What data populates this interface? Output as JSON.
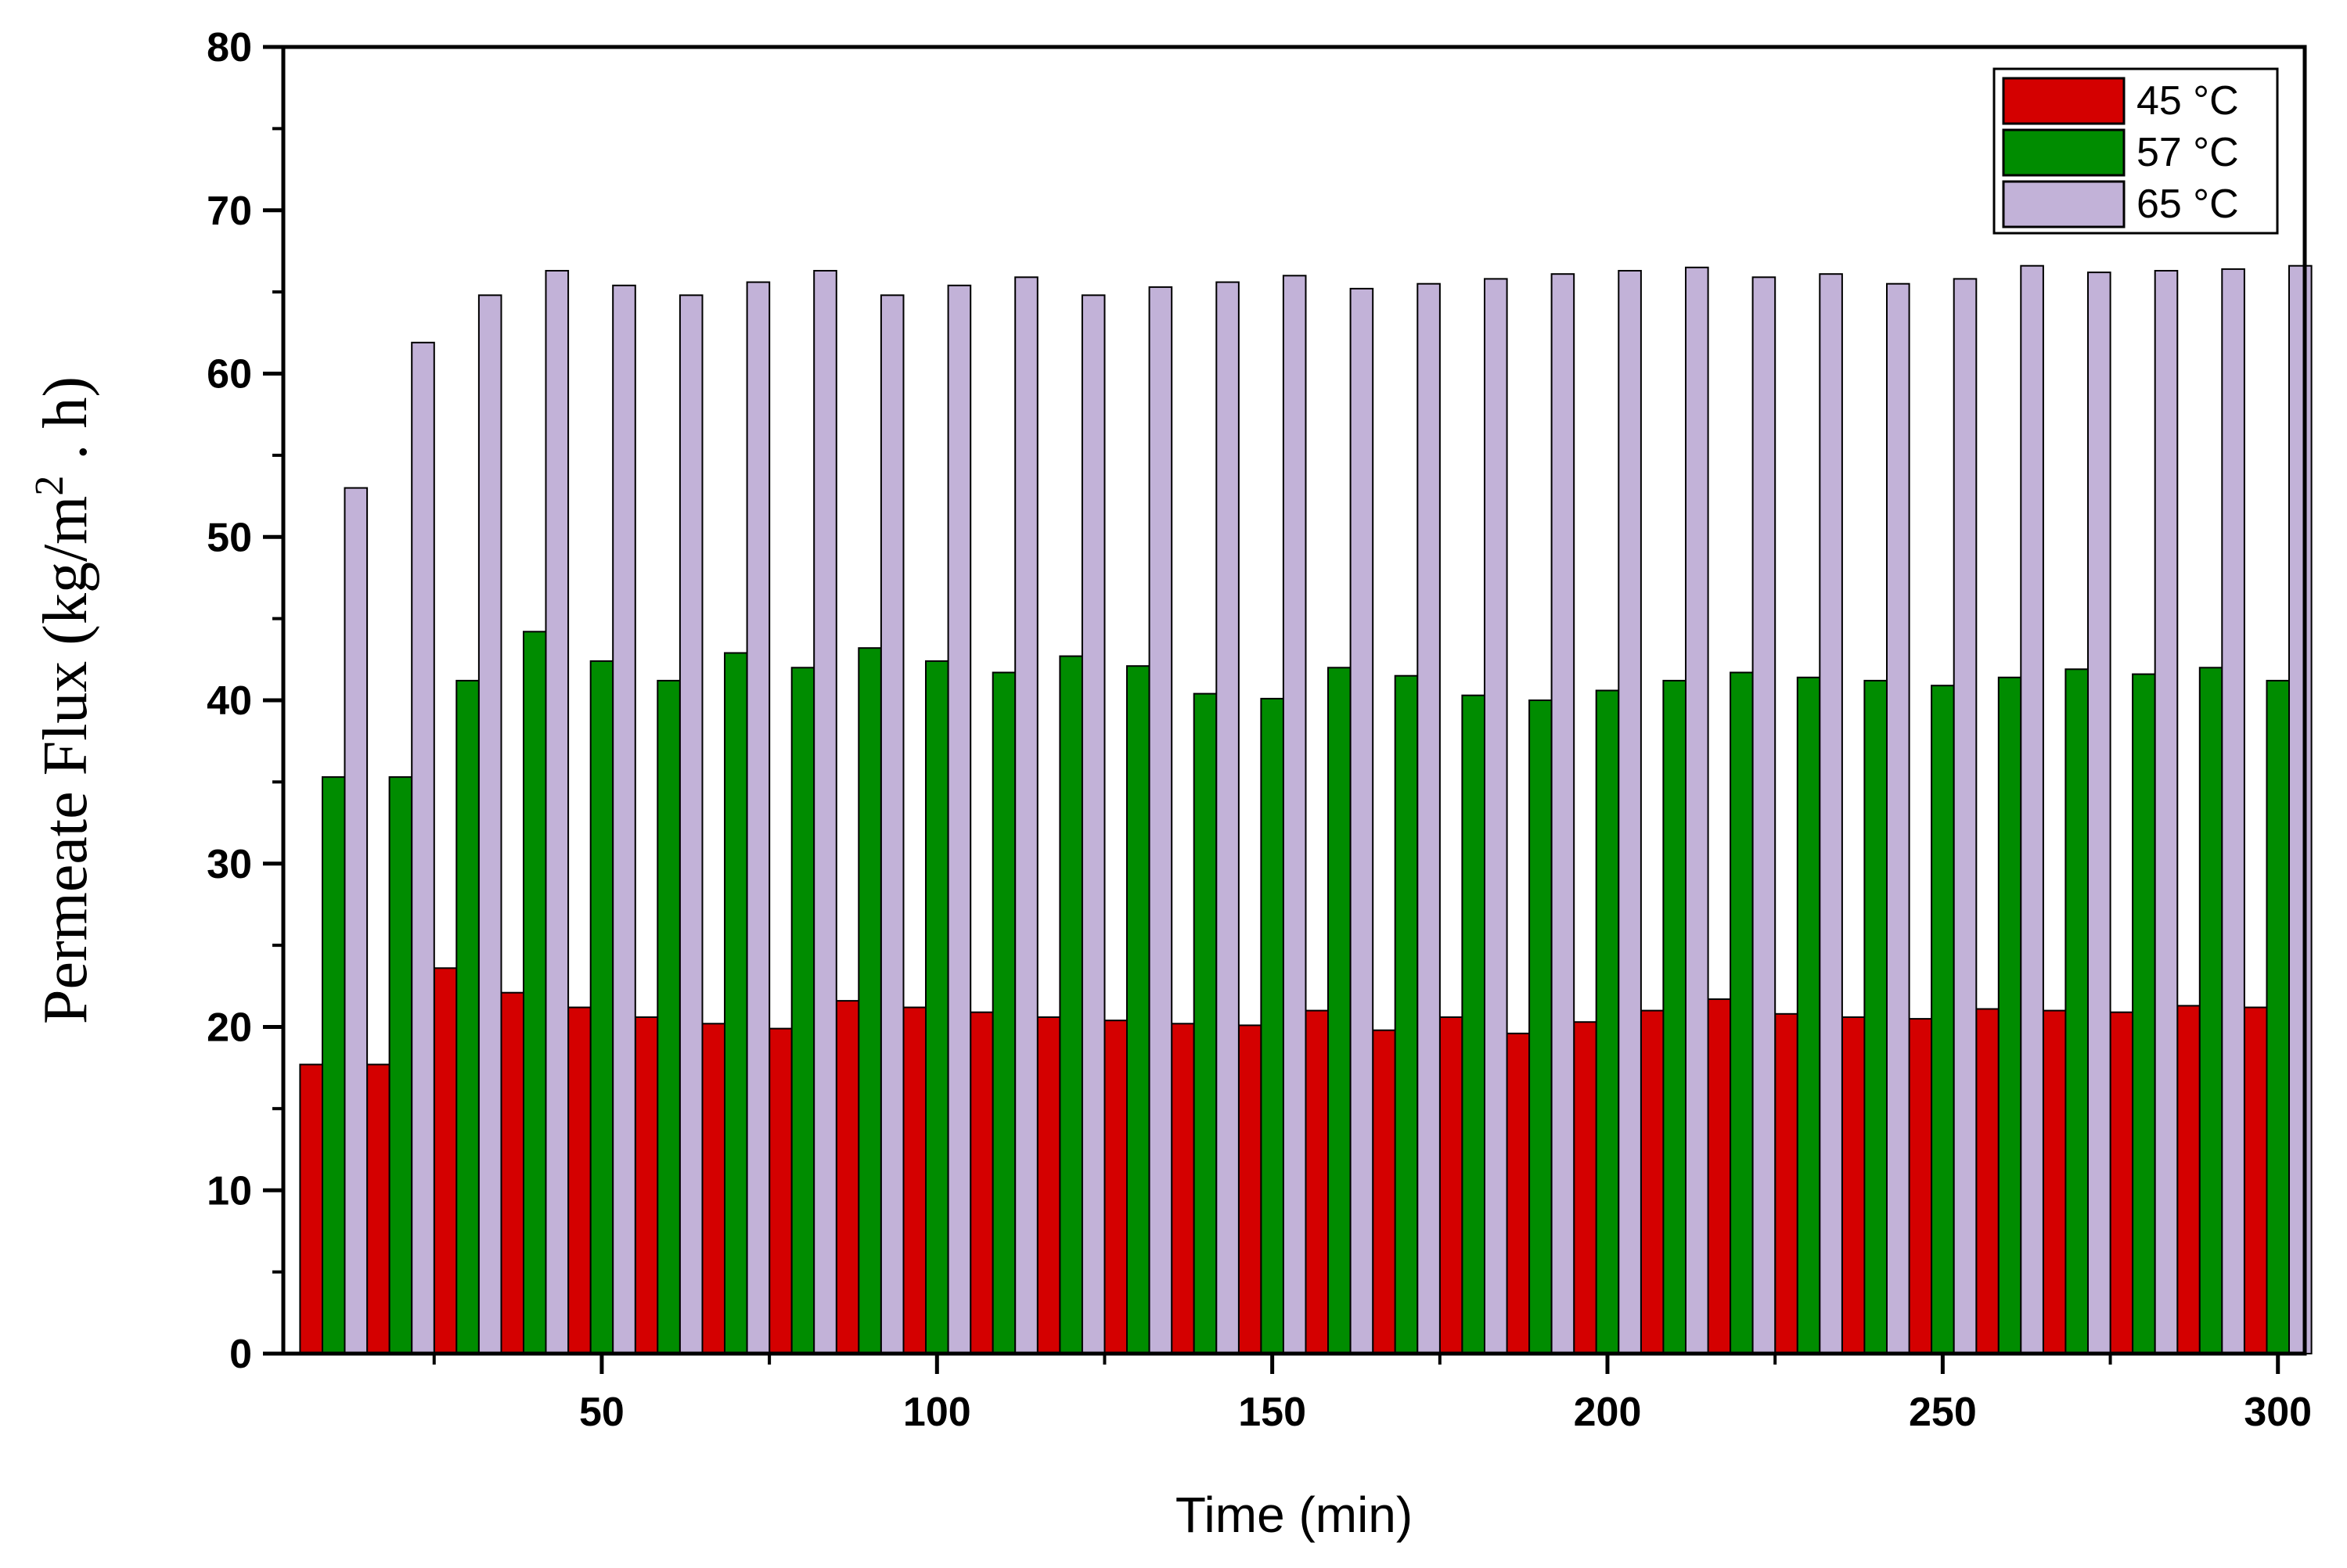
{
  "chart_data": {
    "type": "bar",
    "xlabel": "Time (min)",
    "ylabel": "Permeate Flux (kg/m",
    "ylabel_sup": "2",
    "ylabel_tail": " . h)",
    "xlim": [
      2.5,
      304
    ],
    "ylim": [
      0,
      80
    ],
    "x_ticks": [
      50,
      100,
      150,
      200,
      250,
      300
    ],
    "y_ticks": [
      0,
      10,
      20,
      30,
      40,
      50,
      60,
      70,
      80
    ],
    "grid": false,
    "legend_position": "top-right",
    "x": [
      10,
      20,
      30,
      40,
      50,
      60,
      70,
      80,
      90,
      100,
      110,
      120,
      130,
      140,
      150,
      160,
      170,
      180,
      190,
      200,
      210,
      220,
      230,
      240,
      250,
      260,
      270,
      280,
      290,
      300
    ],
    "series": [
      {
        "name": "45 °C",
        "color": "#d40000",
        "values": [
          17.7,
          17.7,
          23.6,
          22.1,
          21.2,
          20.6,
          20.2,
          19.9,
          21.6,
          21.2,
          20.9,
          20.6,
          20.4,
          20.2,
          20.1,
          21.0,
          19.8,
          20.6,
          19.6,
          20.3,
          21.0,
          21.7,
          20.8,
          20.6,
          20.5,
          21.1,
          21.0,
          20.9,
          21.3,
          21.2
        ]
      },
      {
        "name": "57 °C",
        "color": "#008c00",
        "values": [
          35.3,
          35.3,
          41.2,
          44.2,
          42.4,
          41.2,
          42.9,
          42.0,
          43.2,
          42.4,
          41.7,
          42.7,
          42.1,
          40.4,
          40.1,
          42.0,
          41.5,
          40.3,
          40.0,
          40.6,
          41.2,
          41.7,
          41.4,
          41.2,
          40.9,
          41.4,
          41.9,
          41.6,
          42.0,
          41.2
        ]
      },
      {
        "name": "65 °C",
        "color": "#c2b2d8",
        "values": [
          53.0,
          61.9,
          64.8,
          66.3,
          65.4,
          64.8,
          65.6,
          66.3,
          64.8,
          65.4,
          65.9,
          64.8,
          65.3,
          65.6,
          66.0,
          65.2,
          65.5,
          65.8,
          66.1,
          66.3,
          66.5,
          65.9,
          66.1,
          65.5,
          65.8,
          66.6,
          66.2,
          66.3,
          66.4,
          66.6
        ]
      }
    ]
  }
}
